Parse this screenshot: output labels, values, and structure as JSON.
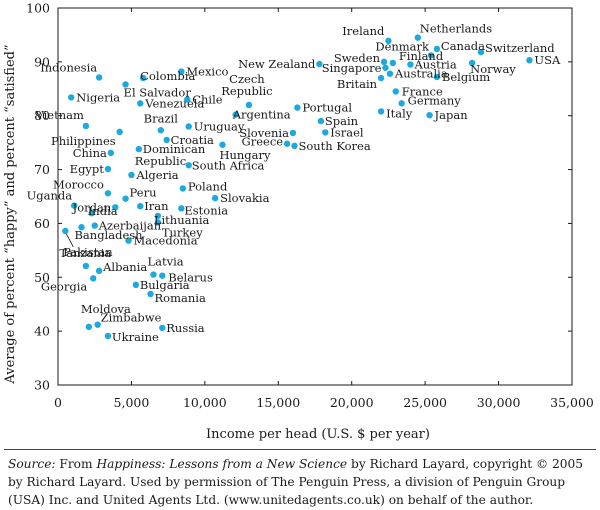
{
  "chart_data": {
    "type": "scatter",
    "xlabel": "Income per head (U.S. $ per year)",
    "ylabel": "Average of percent “happy” and percent “satisfied”",
    "xlim": [
      0,
      35000
    ],
    "ylim": [
      30,
      100
    ],
    "xticks": [
      0,
      5000,
      10000,
      15000,
      20000,
      25000,
      30000,
      35000
    ],
    "xtick_labels": [
      "0",
      "5,000",
      "10,000",
      "15,000",
      "20,000",
      "25,000",
      "30,000",
      "35,000"
    ],
    "yticks": [
      30,
      40,
      50,
      60,
      70,
      80,
      90,
      100
    ],
    "grid": false,
    "point_color": "#1ba9df",
    "points": [
      {
        "label": "Ireland",
        "x": 22500,
        "y": 93.9
      },
      {
        "label": "Netherlands",
        "x": 24500,
        "y": 94.5
      },
      {
        "label": "Denmark",
        "x": 25400,
        "y": 91.2
      },
      {
        "label": "Canada",
        "x": 25800,
        "y": 92.4
      },
      {
        "label": "Switzerland",
        "x": 28800,
        "y": 91.8
      },
      {
        "label": "Sweden",
        "x": 22200,
        "y": 90.0
      },
      {
        "label": "Finland",
        "x": 22800,
        "y": 89.8
      },
      {
        "label": "Singapore",
        "x": 22300,
        "y": 88.9
      },
      {
        "label": "Austria",
        "x": 24000,
        "y": 89.5
      },
      {
        "label": "Australia",
        "x": 22600,
        "y": 87.8
      },
      {
        "label": "Belgium",
        "x": 25800,
        "y": 87.2
      },
      {
        "label": "Norway",
        "x": 28200,
        "y": 89.8
      },
      {
        "label": "USA",
        "x": 32100,
        "y": 90.3
      },
      {
        "label": "Britain",
        "x": 22000,
        "y": 87.0
      },
      {
        "label": "New Zealand",
        "x": 17800,
        "y": 89.6
      },
      {
        "label": "France",
        "x": 23000,
        "y": 84.5
      },
      {
        "label": "Germany",
        "x": 23400,
        "y": 82.3
      },
      {
        "label": "Italy",
        "x": 22000,
        "y": 80.8
      },
      {
        "label": "Japan",
        "x": 25300,
        "y": 80.1
      },
      {
        "label": "Indonesia",
        "x": 2800,
        "y": 87.1
      },
      {
        "label": "Colombia",
        "x": 5800,
        "y": 87.0
      },
      {
        "label": "Mexico",
        "x": 8400,
        "y": 88.2
      },
      {
        "label": "El Salvador",
        "x": 4600,
        "y": 85.8
      },
      {
        "label": "Chile",
        "x": 8800,
        "y": 83.0
      },
      {
        "label": "Nigeria",
        "x": 900,
        "y": 83.4
      },
      {
        "label": "Venezuela",
        "x": 5600,
        "y": 82.3
      },
      {
        "label": "Czech Republic",
        "x": 13000,
        "y": 82.0
      },
      {
        "label": "Portugal",
        "x": 16300,
        "y": 81.5
      },
      {
        "label": "Argentina",
        "x": 12100,
        "y": 80.2
      },
      {
        "label": "Spain",
        "x": 17900,
        "y": 79.0
      },
      {
        "label": "Vietnam",
        "x": 1900,
        "y": 78.1
      },
      {
        "label": "Brazil",
        "x": 7000,
        "y": 77.3
      },
      {
        "label": "Uruguay",
        "x": 8900,
        "y": 78.0
      },
      {
        "label": "Slovenia",
        "x": 16000,
        "y": 76.8
      },
      {
        "label": "Israel",
        "x": 18200,
        "y": 76.9
      },
      {
        "label": "Philippines",
        "x": 4200,
        "y": 77.0
      },
      {
        "label": "Croatia",
        "x": 7400,
        "y": 75.5
      },
      {
        "label": "Dominican Republic",
        "x": 5500,
        "y": 73.8
      },
      {
        "label": "Greece",
        "x": 15600,
        "y": 74.8
      },
      {
        "label": "South Korea",
        "x": 16100,
        "y": 74.4
      },
      {
        "label": "Hungary",
        "x": 11200,
        "y": 74.6
      },
      {
        "label": "China",
        "x": 3600,
        "y": 73.1
      },
      {
        "label": "South Africa",
        "x": 8900,
        "y": 70.8
      },
      {
        "label": "Egypt",
        "x": 3400,
        "y": 70.1
      },
      {
        "label": "Algeria",
        "x": 5000,
        "y": 69.0
      },
      {
        "label": "Poland",
        "x": 8500,
        "y": 66.5
      },
      {
        "label": "Morocco",
        "x": 3400,
        "y": 65.6
      },
      {
        "label": "Peru",
        "x": 4600,
        "y": 64.6
      },
      {
        "label": "Uganda",
        "x": 1100,
        "y": 63.3
      },
      {
        "label": "Jordan",
        "x": 3900,
        "y": 63.0
      },
      {
        "label": "Iran",
        "x": 5600,
        "y": 63.2
      },
      {
        "label": "Slovakia",
        "x": 10700,
        "y": 64.7
      },
      {
        "label": "India",
        "x": 2300,
        "y": 61.9
      },
      {
        "label": "Estonia",
        "x": 8400,
        "y": 62.8
      },
      {
        "label": "Lithuania",
        "x": 6800,
        "y": 61.4
      },
      {
        "label": "Azerbaijan",
        "x": 2500,
        "y": 59.6
      },
      {
        "label": "Bangladesh",
        "x": 1600,
        "y": 59.3
      },
      {
        "label": "Turkey",
        "x": 6800,
        "y": 60.2
      },
      {
        "label": "Tanzania",
        "x": 500,
        "y": 58.6
      },
      {
        "label": "Macedonia",
        "x": 4800,
        "y": 56.8
      },
      {
        "label": "Pakistan",
        "x": 1900,
        "y": 52.1
      },
      {
        "label": "Albania",
        "x": 2800,
        "y": 51.2
      },
      {
        "label": "Latvia",
        "x": 6500,
        "y": 50.5
      },
      {
        "label": "Belarus",
        "x": 7100,
        "y": 50.3
      },
      {
        "label": "Georgia",
        "x": 2400,
        "y": 49.8
      },
      {
        "label": "Bulgaria",
        "x": 5300,
        "y": 48.6
      },
      {
        "label": "Romania",
        "x": 6300,
        "y": 46.9
      },
      {
        "label": "Moldova",
        "x": 2100,
        "y": 40.8
      },
      {
        "label": "Zimbabwe",
        "x": 2700,
        "y": 41.2
      },
      {
        "label": "Russia",
        "x": 7100,
        "y": 40.6
      },
      {
        "label": "Ukraine",
        "x": 3400,
        "y": 39.1
      }
    ]
  },
  "source": {
    "prefix": "Source:",
    "text_a": " From ",
    "book_title": "Happiness: Lessons from a New Science",
    "text_b": " by Richard Layard, copyright © 2005 by Richard Layard. Used by permission of The Penguin Press, a division of Penguin Group (USA) Inc. and United Agents Ltd. (www.unitedagents.co.uk) on behalf of the author."
  }
}
